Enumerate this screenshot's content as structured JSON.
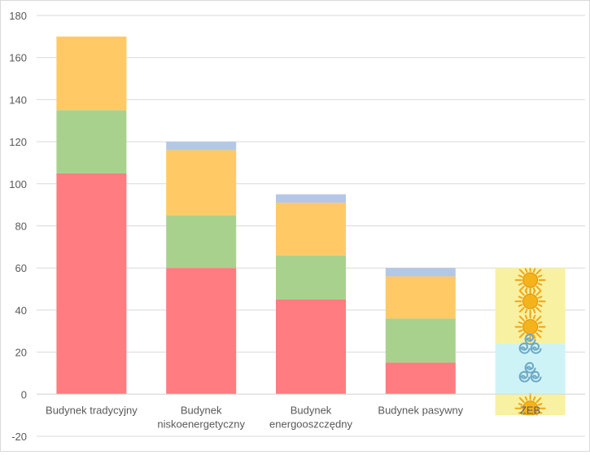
{
  "chart_data": {
    "type": "bar",
    "stacked": true,
    "categories": [
      "Budynek tradycyjny",
      "Budynek niskoenergetyczny",
      "Budynek energooszczędny",
      "Budynek pasywny",
      "ZEB"
    ],
    "category_label_lines": [
      [
        "Budynek tradycyjny"
      ],
      [
        "Budynek",
        "niskoenergetyczny"
      ],
      [
        "Budynek",
        "energooszczędny"
      ],
      [
        "Budynek pasywny"
      ],
      [
        "ZEB"
      ]
    ],
    "series": [
      {
        "values": [
          105,
          60,
          45,
          15,
          null
        ],
        "color": "#ff7c80"
      },
      {
        "values": [
          30,
          25,
          21,
          21,
          null
        ],
        "color": "#a9d18e"
      },
      {
        "values": [
          35,
          31,
          25,
          20,
          null
        ],
        "color": "#ffca66"
      },
      {
        "values": [
          0,
          4,
          4,
          4,
          null
        ],
        "color": "#b4c7e7"
      }
    ],
    "zeb_segments": [
      {
        "from": -10,
        "to": 0,
        "fill": "#f7f1a1",
        "icon": "sun-icon"
      },
      {
        "from": 0,
        "to": 24,
        "fill": "#cef3f7",
        "icon": "wind-spiral-icon"
      },
      {
        "from": 24,
        "to": 60,
        "fill": "#f7f1a1",
        "icon": "sun-icon"
      }
    ],
    "ylim": [
      -20,
      180
    ],
    "yticks": [
      -20,
      0,
      20,
      40,
      60,
      80,
      100,
      120,
      140,
      160,
      180
    ],
    "grid": true,
    "legend": "none",
    "title": "",
    "xlabel": "",
    "ylabel": ""
  }
}
